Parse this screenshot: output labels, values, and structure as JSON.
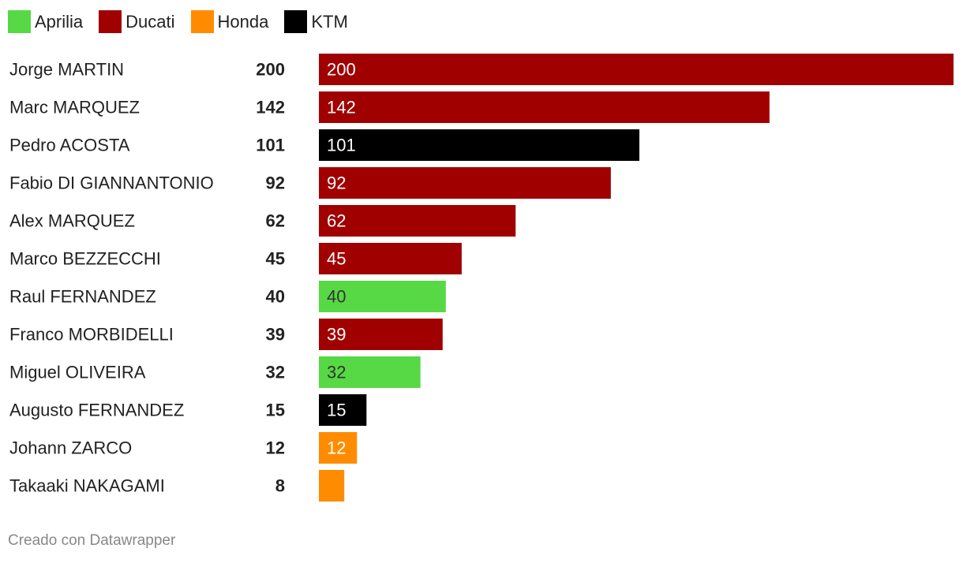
{
  "chart_data": {
    "type": "bar",
    "orientation": "horizontal",
    "categories": [
      "Jorge MARTIN",
      "Marc MARQUEZ",
      "Pedro ACOSTA",
      "Fabio DI GIANNANTONIO",
      "Alex MARQUEZ",
      "Marco BEZZECCHI",
      "Raul FERNANDEZ",
      "Franco MORBIDELLI",
      "Miguel OLIVEIRA",
      "Augusto FERNANDEZ",
      "Johann ZARCO",
      "Takaaki NAKAGAMI"
    ],
    "values": [
      200,
      142,
      101,
      92,
      62,
      45,
      40,
      39,
      32,
      15,
      12,
      8
    ],
    "groups": [
      "Ducati",
      "Ducati",
      "KTM",
      "Ducati",
      "Ducati",
      "Ducati",
      "Aprilia",
      "Ducati",
      "Aprilia",
      "KTM",
      "Honda",
      "Honda"
    ],
    "legend": [
      {
        "name": "Aprilia",
        "color": "#56d944"
      },
      {
        "name": "Ducati",
        "color": "#a00000"
      },
      {
        "name": "Honda",
        "color": "#ff8c00"
      },
      {
        "name": "KTM",
        "color": "#000000"
      }
    ],
    "bar_label_colors": {
      "Aprilia": "#333333",
      "Ducati": "#ffffff",
      "Honda": "#ffffff",
      "KTM": "#ffffff"
    },
    "xlim": [
      0,
      200
    ],
    "legend_position": "top-left",
    "grid": false
  },
  "footer": {
    "credit": "Creado con Datawrapper"
  }
}
